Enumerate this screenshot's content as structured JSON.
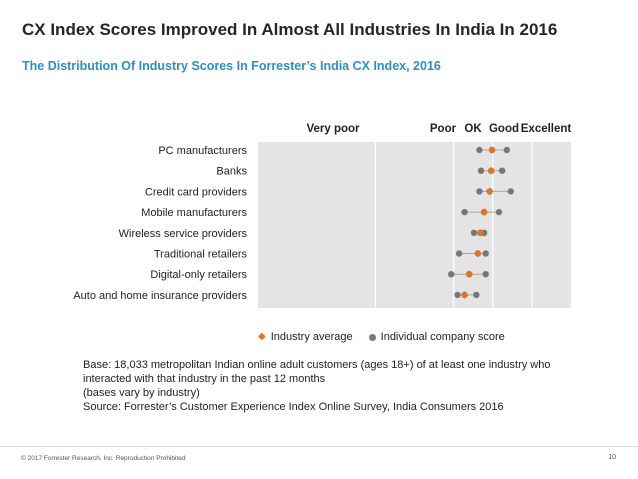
{
  "slide": {
    "title": "CX Index Scores Improved In Almost All Industries In India In 2016",
    "subtitle": "The Distribution Of Industry Scores In Forrester’s India CX Index, 2016",
    "copyright": "© 2017 Forrester Research, Inc. Reproduction Prohibited",
    "page_number": "10"
  },
  "chart_data": {
    "type": "scatter",
    "title": "The Distribution Of Industry Scores In Forrester’s India CX Index, 2016",
    "bands": [
      "Very poor",
      "Poor",
      "OK",
      "Good",
      "Excellent"
    ],
    "band_bounds": [
      [
        40,
        55
      ],
      [
        55,
        65
      ],
      [
        65,
        70
      ],
      [
        70,
        75
      ],
      [
        75,
        100
      ]
    ],
    "xlim": [
      40,
      80
    ],
    "categories": [
      "PC manufacturers",
      "Banks",
      "Credit card providers",
      "Mobile manufacturers",
      "Wireless service providers",
      "Traditional retailers",
      "Digital-only retailers",
      "Auto and home insurance providers"
    ],
    "series": [
      {
        "name": "Industry average",
        "marker": "diamond",
        "color": "#e8731e",
        "values": [
          69.9,
          69.8,
          69.6,
          68.9,
          68.4,
          68.1,
          67.0,
          66.4
        ]
      },
      {
        "name": "Individual company score",
        "marker": "dot",
        "color": "#777777",
        "points": [
          [
            68.3,
            69.9,
            71.8
          ],
          [
            68.5,
            69.8,
            71.2
          ],
          [
            68.3,
            69.6,
            72.3
          ],
          [
            66.4,
            68.9,
            70.8
          ],
          [
            67.6,
            68.4,
            68.9
          ],
          [
            65.7,
            68.1,
            69.1
          ],
          [
            64.7,
            67.0,
            69.1
          ],
          [
            65.5,
            66.4,
            67.9
          ]
        ]
      }
    ],
    "legend": [
      "Industry average",
      "Individual company score"
    ],
    "notes": [
      "Base: 18,033 metropolitan Indian online adult customers (ages 18+) of at least one industry who",
      "interacted with that industry in the past 12 months",
      "(bases vary by industry)",
      "Source: Forrester’s Customer Experience Index Online Survey, India Consumers 2016"
    ],
    "colors": {
      "plot_background": "#e4e4e4",
      "band_line": "#ffffff",
      "company_dot": "#777777",
      "industry_average": "#e8731e"
    }
  }
}
